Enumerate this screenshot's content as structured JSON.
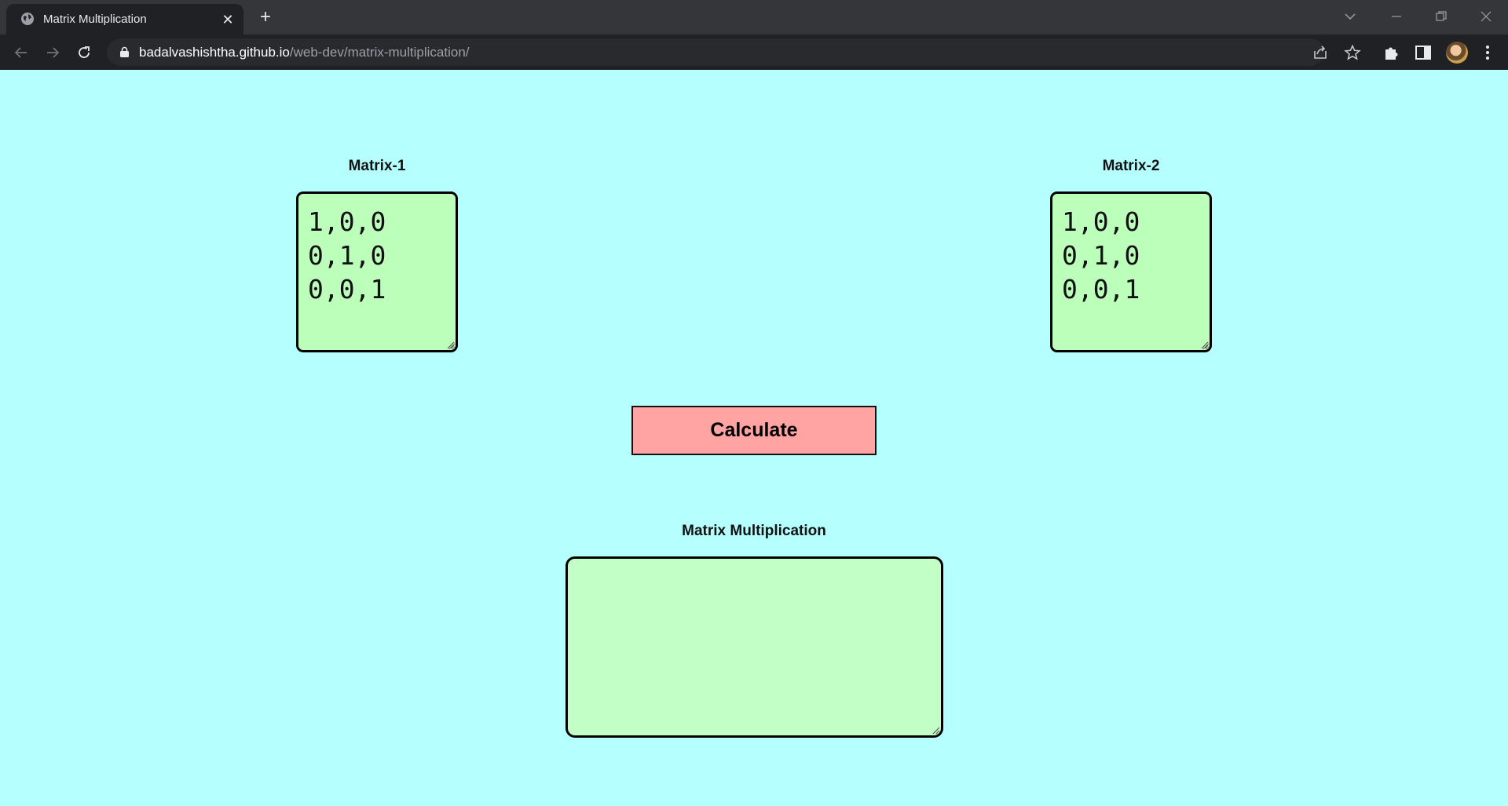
{
  "browser": {
    "tab_title": "Matrix Multiplication",
    "tab_close": "✕",
    "new_tab": "+",
    "url_host": "badalvashishtha.github.io",
    "url_path": "/web-dev/matrix-multiplication/"
  },
  "page": {
    "matrix1_label": "Matrix-1",
    "matrix1_value": "1,0,0\n0,1,0\n0,0,1",
    "matrix2_label": "Matrix-2",
    "matrix2_value": "1,0,0\n0,1,0\n0,0,1",
    "calculate_label": "Calculate",
    "result_label": "Matrix Multiplication",
    "result_value": ""
  },
  "colors": {
    "page_background": "#b6ffff",
    "matrix_background": "#bbffbb",
    "result_background": "#c2ffc6",
    "button_background": "#ffa3a3"
  }
}
